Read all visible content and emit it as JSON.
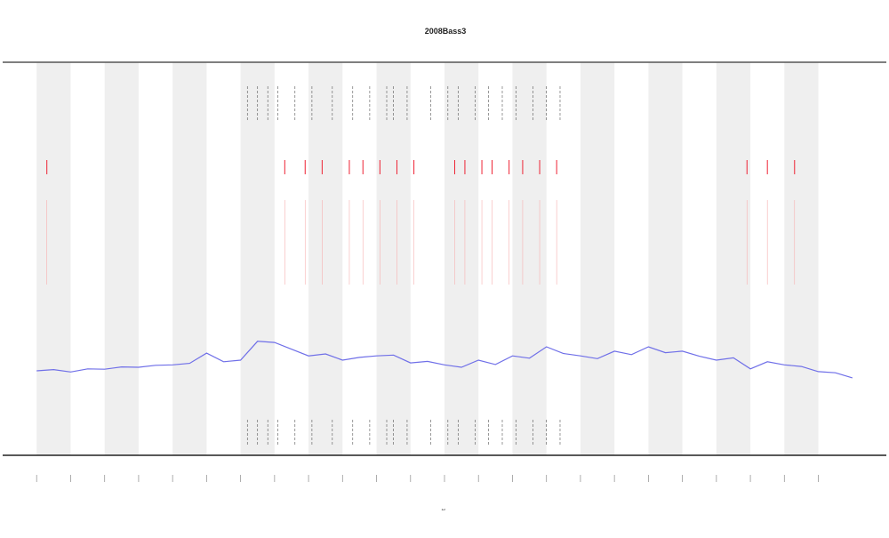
{
  "chart_data": {
    "type": "line",
    "title": "2008Bass3",
    "x_label": "t",
    "xlim": [
      -1,
      25
    ],
    "xticks": [
      0,
      1,
      2,
      3,
      4,
      5,
      6,
      7,
      8,
      9,
      10,
      11,
      12,
      13,
      14,
      15,
      16,
      17,
      18,
      19,
      20,
      21,
      22,
      23
    ],
    "ylim": [
      0,
      100
    ],
    "series": [
      {
        "color": "#6f6fe8",
        "x": [
          0,
          0.5,
          1,
          1.5,
          2,
          2.5,
          3,
          3.5,
          4,
          4.5,
          5,
          5.5,
          6,
          6.5,
          7,
          7.5,
          8,
          8.5,
          9,
          9.5,
          10,
          10.5,
          11,
          11.5,
          12,
          12.5,
          13,
          13.5,
          14,
          14.5,
          15,
          15.5,
          16,
          16.5,
          17,
          17.5,
          18,
          18.5,
          19,
          19.5,
          20,
          20.5,
          21,
          21.5,
          22,
          22.5,
          23,
          23.5,
          24
        ],
        "values": [
          21.5,
          21.8,
          21.2,
          22,
          21.9,
          22.5,
          22.4,
          22.9,
          23,
          23.4,
          26,
          23.8,
          24.2,
          29,
          28.7,
          27,
          25.3,
          25.8,
          24.2,
          24.9,
          25.3,
          25.5,
          23.5,
          23.9,
          23,
          22.4,
          24.2,
          23.1,
          25.3,
          24.7,
          27.6,
          25.9,
          25.3,
          24.6,
          26.5,
          25.6,
          27.6,
          26.1,
          26.5,
          25.2,
          24.2,
          24.8,
          22,
          23.8,
          23,
          22.6,
          21.3,
          21,
          19.7
        ]
      }
    ],
    "red_events": [
      0.3,
      7.3,
      7.9,
      8.4,
      9.2,
      9.6,
      10.1,
      10.6,
      11.1,
      12.3,
      12.6,
      13.1,
      13.4,
      13.9,
      14.3,
      14.8,
      15.3,
      20.9,
      21.5,
      22.3
    ],
    "black_events": [
      6.2,
      6.5,
      6.8,
      7.1,
      7.6,
      8.1,
      8.7,
      9.3,
      9.8,
      10.3,
      10.5,
      10.9,
      11.6,
      12.1,
      12.4,
      12.9,
      13.3,
      13.7,
      14.1,
      14.6,
      15.0,
      15.4
    ]
  }
}
